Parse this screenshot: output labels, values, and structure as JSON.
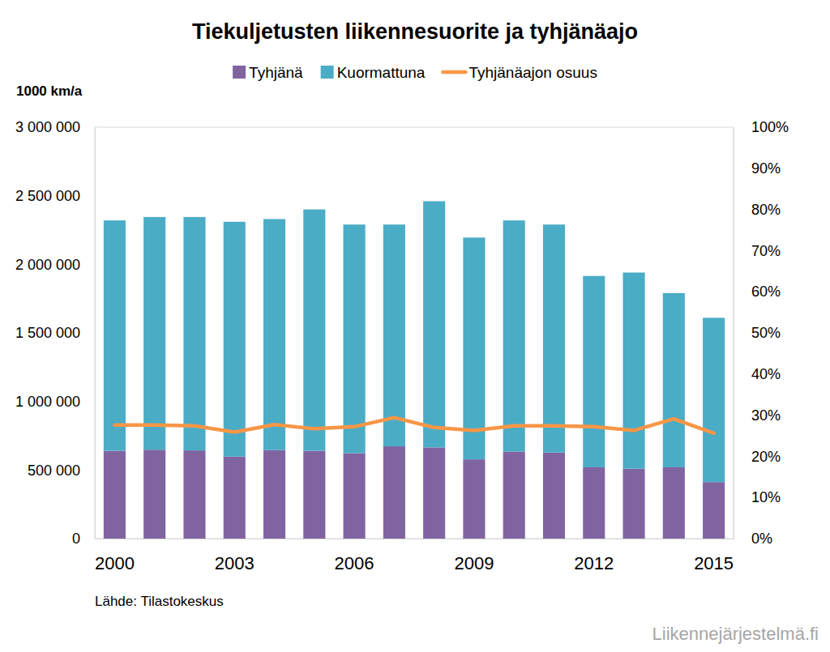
{
  "chart_data": {
    "type": "bar",
    "title": "Tiekuljetusten liikennesuorite ja tyhjänäajo",
    "y_label": "1000 km/a",
    "source": "Lähde: Tilastokeskus",
    "watermark": "Liikennejärjestelmä.fi",
    "stacked": true,
    "grid": false,
    "legend": "top",
    "categories": [
      "2000",
      null,
      null,
      "2003",
      null,
      null,
      "2006",
      null,
      null,
      "2009",
      null,
      null,
      "2012",
      null,
      null,
      "2015"
    ],
    "series": [
      {
        "name": "Tyhjänä",
        "type": "bar",
        "color": "#8064a2",
        "values": [
          640000,
          648000,
          643000,
          598000,
          645000,
          640000,
          623000,
          673000,
          665000,
          578000,
          635000,
          628000,
          520000,
          510000,
          520000,
          412000
        ]
      },
      {
        "name": "Kuormattuna",
        "type": "bar",
        "color": "#4bacc6",
        "values": [
          1680000,
          1697000,
          1702000,
          1712000,
          1685000,
          1760000,
          1667000,
          1617000,
          1795000,
          1617000,
          1685000,
          1662000,
          1395000,
          1430000,
          1270000,
          1198000
        ]
      },
      {
        "name": "Tyhjänäajon osuus",
        "type": "line",
        "axis": "y2",
        "color": "#f79646",
        "values": [
          27.6,
          27.6,
          27.4,
          25.9,
          27.7,
          26.7,
          27.2,
          29.4,
          27.0,
          26.3,
          27.4,
          27.4,
          27.2,
          26.3,
          29.1,
          25.6
        ]
      }
    ],
    "ylim": [
      0,
      3000000
    ],
    "yticks": [
      0,
      {
        "value": 500000,
        "label": "500 000"
      },
      {
        "value": 1000000,
        "label": "1 000 000"
      },
      {
        "value": 1500000,
        "label": "1 500 000"
      },
      {
        "value": 2000000,
        "label": "2 000 000"
      },
      {
        "value": 2500000,
        "label": "2 500 000"
      },
      {
        "value": 3000000,
        "label": "3 000 000"
      }
    ],
    "y2lim": [
      0,
      100
    ],
    "y2ticks": [
      {
        "value": 0,
        "label": "0%"
      },
      {
        "value": 10,
        "label": "10%"
      },
      {
        "value": 20,
        "label": "20%"
      },
      {
        "value": 30,
        "label": "30%"
      },
      {
        "value": 40,
        "label": "40%"
      },
      {
        "value": 50,
        "label": "50%"
      },
      {
        "value": 60,
        "label": "60%"
      },
      {
        "value": 70,
        "label": "70%"
      },
      {
        "value": 80,
        "label": "80%"
      },
      {
        "value": 90,
        "label": "90%"
      },
      {
        "value": 100,
        "label": "100%"
      }
    ]
  }
}
